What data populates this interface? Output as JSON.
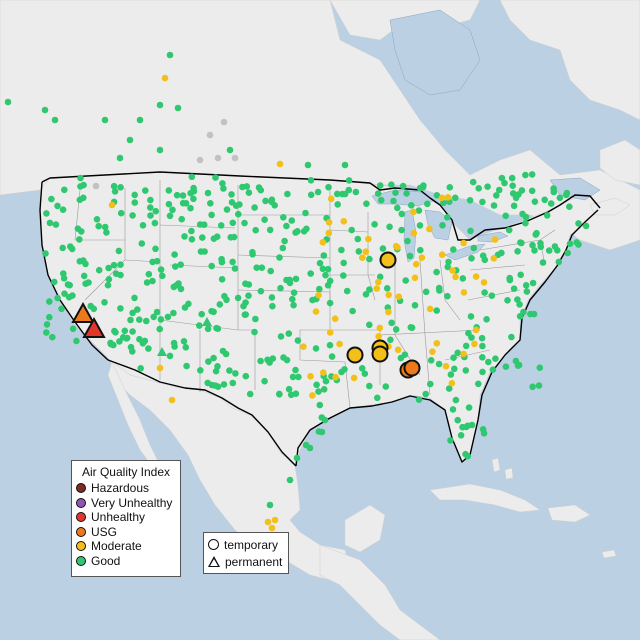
{
  "legend": {
    "title": "Air Quality Index",
    "categories": [
      {
        "label": "Hazardous",
        "color": "#7e2a1e"
      },
      {
        "label": "Very Unhealthy",
        "color": "#8f56b3"
      },
      {
        "label": "Unhealthy",
        "color": "#e3362b"
      },
      {
        "label": "USG",
        "color": "#ec7a1c"
      },
      {
        "label": "Moderate",
        "color": "#f2c018"
      },
      {
        "label": "Good",
        "color": "#2fc870"
      }
    ]
  },
  "monitor_types": {
    "temporary": "temporary",
    "permanent": "permanent"
  },
  "colors": {
    "water": "#bcd0e4",
    "land": "#ececec",
    "border": "#000000",
    "state_line": "#9a9a9a",
    "no_data": "#c2c2c2"
  }
}
